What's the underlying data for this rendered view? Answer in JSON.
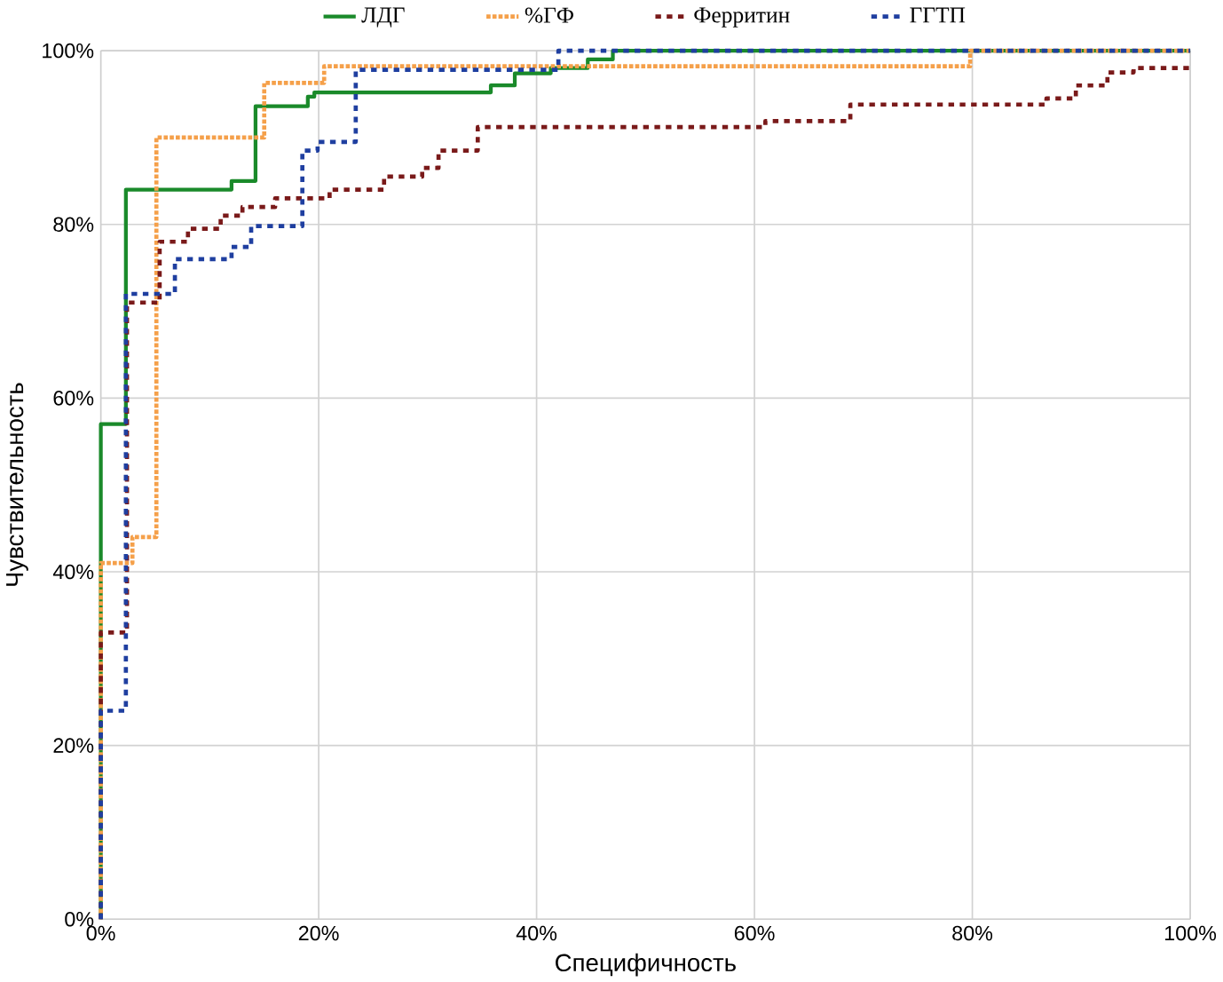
{
  "chart_data": {
    "type": "step",
    "xlabel": "Специфичность",
    "ylabel": "Чувствительность",
    "xlim": [
      0,
      100
    ],
    "ylim": [
      0,
      100
    ],
    "xticks": [
      {
        "value": 0,
        "label": "0%"
      },
      {
        "value": 20,
        "label": "20%"
      },
      {
        "value": 40,
        "label": "40%"
      },
      {
        "value": 60,
        "label": "60%"
      },
      {
        "value": 80,
        "label": "80%"
      },
      {
        "value": 100,
        "label": "100%"
      }
    ],
    "yticks": [
      {
        "value": 0,
        "label": "0%"
      },
      {
        "value": 20,
        "label": "20%"
      },
      {
        "value": 40,
        "label": "40%"
      },
      {
        "value": 60,
        "label": "60%"
      },
      {
        "value": 80,
        "label": "80%"
      },
      {
        "value": 100,
        "label": "100%"
      }
    ],
    "grid": true,
    "legend": "top",
    "marker": "none",
    "series": [
      {
        "name": "ЛДГ",
        "color": "#1a8a2a",
        "line_style": "solid",
        "x": [
          0,
          0,
          2.3,
          12,
          14.2,
          19,
          19.6,
          35.8,
          38,
          41.3,
          44.7,
          47,
          100
        ],
        "values": [
          0,
          57,
          84,
          85,
          93.6,
          94.7,
          95.2,
          96,
          97.4,
          98,
          99,
          100,
          100
        ]
      },
      {
        "name": "%ГФ",
        "color": "#f5a04a",
        "line_style": "dotted",
        "x": [
          0,
          0,
          2.9,
          5.1,
          15,
          20.5,
          79.8,
          100
        ],
        "values": [
          0,
          41,
          44,
          90,
          96.3,
          98.2,
          100,
          100
        ]
      },
      {
        "name": "Ферритин",
        "color": "#7a1a1a",
        "line_style": "dashed",
        "x": [
          0,
          0,
          2.4,
          5.4,
          8,
          11,
          13,
          16,
          21,
          26,
          29.5,
          31,
          34.6,
          61,
          68.8,
          86.8,
          89.5,
          92.4,
          94.8,
          100
        ],
        "values": [
          0,
          33,
          71,
          78,
          79.5,
          81,
          82,
          83,
          84,
          85.5,
          86.5,
          88.5,
          91.2,
          91.9,
          93.8,
          94.5,
          96,
          97.5,
          98,
          98
        ]
      },
      {
        "name": "ГГТП",
        "color": "#1f3fa0",
        "line_style": "dashed",
        "x": [
          0,
          0,
          2.3,
          6.8,
          12,
          13.8,
          18.5,
          19.9,
          23.4,
          42,
          100
        ],
        "values": [
          0,
          24,
          72,
          76,
          77.4,
          79.8,
          88.5,
          89.5,
          97.8,
          100,
          100
        ]
      }
    ]
  }
}
